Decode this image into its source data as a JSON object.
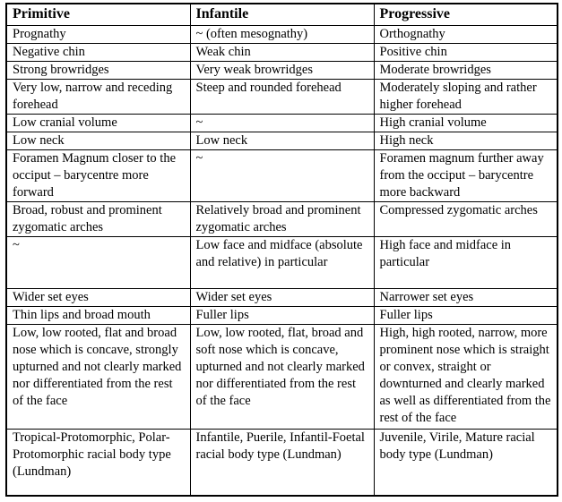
{
  "table": {
    "header": [
      "Primitive",
      "Infantile",
      "Progressive"
    ],
    "rows": [
      [
        "Prognathy",
        "~ (often mesognathy)",
        "Orthognathy"
      ],
      [
        "Negative chin",
        "Weak chin",
        "Positive chin"
      ],
      [
        "Strong browridges",
        "Very weak browridges",
        "Moderate browridges"
      ],
      [
        "Very low, narrow and receding forehead",
        "Steep and rounded forehead",
        "Moderately sloping and rather higher forehead"
      ],
      [
        "Low cranial volume",
        "~",
        "High cranial volume"
      ],
      [
        "Low neck",
        "Low neck",
        "High neck"
      ],
      [
        "Foramen Magnum closer to the occiput – barycentre more forward",
        "~",
        "Foramen magnum further away from the occiput – barycentre more backward"
      ],
      [
        "Broad, robust and prominent zygomatic arches",
        "Relatively broad and prominent zygomatic arches",
        "Compressed zygomatic arches"
      ],
      [
        "~",
        "Low face and midface (absolute and relative) in particular",
        "High face and midface in particular"
      ],
      [
        "Wider set eyes",
        "Wider set eyes",
        "Narrower set eyes"
      ],
      [
        "Thin lips and broad mouth",
        "Fuller lips",
        "Fuller lips"
      ],
      [
        "Low, low rooted, flat and broad nose which is concave, strongly upturned and not clearly marked nor differentiated from the rest of the face",
        "Low, low rooted, flat, broad and soft nose which is concave, upturned and not clearly marked nor differentiated from the rest of the face",
        "High, high rooted, narrow, more prominent nose which is straight or convex, straight or downturned and clearly marked as well as differentiated from the rest of the face"
      ],
      [
        "Tropical-Protomorphic, Polar-Protomorphic racial body type (Lundman)",
        "Infantile, Puerile, Infantil-Foetal racial body type (Lundman)",
        "Juvenile, Virile, Mature racial body type (Lundman)"
      ]
    ]
  }
}
